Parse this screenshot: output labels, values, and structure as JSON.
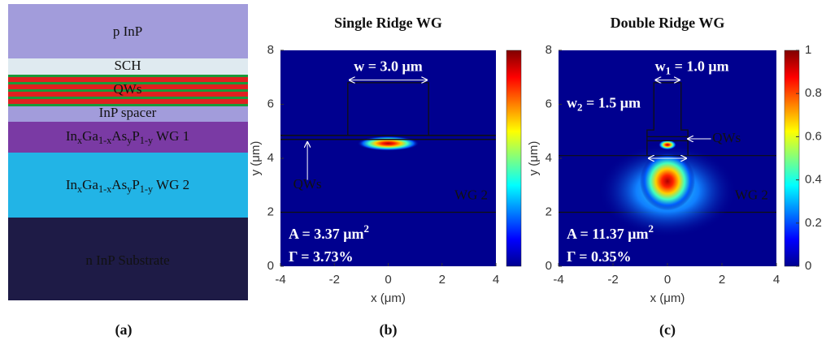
{
  "panel_a": {
    "layers": [
      "p  InP",
      "SCH",
      "QWs",
      "InP spacer",
      [
        "In",
        "x",
        "Ga",
        "1-x",
        "As",
        "y",
        "P",
        "1-y",
        " WG 1"
      ],
      [
        "In",
        "x",
        "Ga",
        "1-x",
        "As",
        "y",
        "P",
        "1-y",
        " WG 2"
      ],
      "n  InP Substrate"
    ],
    "label": "(a)"
  },
  "panel_b": {
    "title": "Single Ridge WG",
    "xlabel": "x (μm)",
    "ylabel": "y (μm)",
    "xticks": [
      -4,
      -2,
      0,
      2,
      4
    ],
    "yticks": [
      0,
      2,
      4,
      6,
      8
    ],
    "width_label": "w = 3.0 μm",
    "qws_label": "QWs",
    "wg2_label": "WG 2",
    "area": [
      "A =  3.37 μm",
      "2"
    ],
    "gamma": "Γ =  3.73%",
    "label": "(b)"
  },
  "panel_c": {
    "title": "Double Ridge WG",
    "xlabel": "x (μm)",
    "ylabel": "y (μm)",
    "xticks": [
      -4,
      -2,
      0,
      2,
      4
    ],
    "yticks": [
      0,
      2,
      4,
      6,
      8
    ],
    "w1_label": [
      "w",
      "1",
      " = 1.0 μm"
    ],
    "w2_label": [
      "w",
      "2",
      " = 1.5 μm"
    ],
    "qws_label": "QWs",
    "wg2_label": "WG 2",
    "area": [
      "A =  11.37 μm",
      "2"
    ],
    "gamma": "Γ =  0.35%",
    "colorbar_ticks": [
      0,
      0.2,
      0.4,
      0.6,
      0.8,
      1
    ],
    "label": "(c)"
  }
}
